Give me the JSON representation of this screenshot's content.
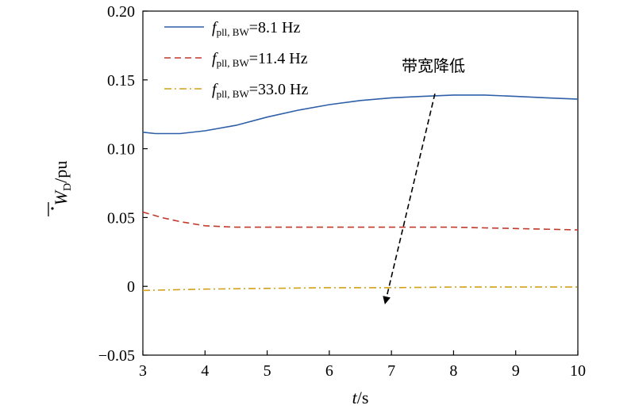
{
  "chart_data": {
    "type": "line",
    "x_axis": {
      "label_italic": "t",
      "label_rest": "/s",
      "range": [
        3,
        10
      ],
      "ticks": [
        3,
        4,
        5,
        6,
        7,
        8,
        9,
        10
      ],
      "tick_labels": [
        "3",
        "4",
        "5",
        "6",
        "7",
        "8",
        "9",
        "10"
      ]
    },
    "y_axis": {
      "label_main": "W",
      "label_sub": "D",
      "label_rest": "/pu",
      "range": [
        -0.05,
        0.2
      ],
      "ticks": [
        -0.05,
        0,
        0.05,
        0.1,
        0.15,
        0.2
      ],
      "tick_labels": [
        "−0.05",
        "0",
        "0.05",
        "0.10",
        "0.15",
        "0.20"
      ]
    },
    "grid": false,
    "legend_position": "top-left",
    "series": [
      {
        "name_main": "f",
        "name_sub": "pll, BW",
        "name_value": "=8.1 Hz",
        "color": "#2e5fa8",
        "style": "solid",
        "points": [
          [
            3,
            0.112
          ],
          [
            3.2,
            0.111
          ],
          [
            3.6,
            0.111
          ],
          [
            4,
            0.113
          ],
          [
            4.5,
            0.117
          ],
          [
            5,
            0.123
          ],
          [
            5.5,
            0.128
          ],
          [
            6,
            0.132
          ],
          [
            6.5,
            0.135
          ],
          [
            7,
            0.137
          ],
          [
            7.5,
            0.138
          ],
          [
            8,
            0.139
          ],
          [
            8.5,
            0.139
          ],
          [
            9,
            0.138
          ],
          [
            9.5,
            0.137
          ],
          [
            10,
            0.136
          ]
        ]
      },
      {
        "name_main": "f",
        "name_sub": "pll, BW",
        "name_value": "=11.4 Hz",
        "color": "#c0392b",
        "style": "dashed",
        "points": [
          [
            3,
            0.054
          ],
          [
            3.3,
            0.05
          ],
          [
            3.6,
            0.047
          ],
          [
            4,
            0.044
          ],
          [
            4.5,
            0.043
          ],
          [
            5,
            0.043
          ],
          [
            6,
            0.043
          ],
          [
            7,
            0.043
          ],
          [
            8,
            0.043
          ],
          [
            9,
            0.042
          ],
          [
            10,
            0.041
          ]
        ]
      },
      {
        "name_main": "f",
        "name_sub": "pll, BW",
        "name_value": "=33.0 Hz",
        "color": "#d4a017",
        "style": "dashdot",
        "points": [
          [
            3,
            -0.003
          ],
          [
            4,
            -0.002
          ],
          [
            5,
            -0.0015
          ],
          [
            6,
            -0.001
          ],
          [
            7,
            -0.001
          ],
          [
            8,
            -0.0005
          ],
          [
            9,
            -0.0005
          ],
          [
            10,
            -0.0005
          ]
        ]
      }
    ],
    "annotation": {
      "text": "带宽降低",
      "arrow_from": [
        7.7,
        0.14
      ],
      "arrow_to": [
        6.9,
        -0.012
      ]
    }
  }
}
